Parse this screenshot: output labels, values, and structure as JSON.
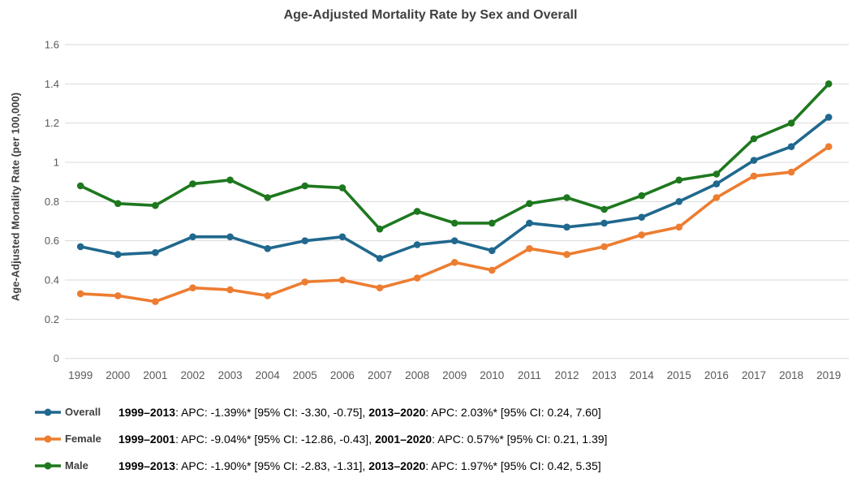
{
  "title": "Age-Adjusted Mortality Rate by Sex and Overall",
  "colors": {
    "overall": "#20688E",
    "female": "#ED7D31",
    "male": "#1E781E",
    "gridline": "#D9D9D9",
    "axis_text": "#595959",
    "title_text": "#404040"
  },
  "chart_data": {
    "type": "line",
    "x": [
      1999,
      2000,
      2001,
      2002,
      2003,
      2004,
      2005,
      2006,
      2007,
      2008,
      2009,
      2010,
      2011,
      2012,
      2013,
      2014,
      2015,
      2016,
      2017,
      2018,
      2019
    ],
    "series": [
      {
        "name": "Overall",
        "color": "#20688E",
        "values": [
          0.57,
          0.53,
          0.54,
          0.62,
          0.62,
          0.56,
          0.6,
          0.62,
          0.51,
          0.58,
          0.6,
          0.55,
          0.69,
          0.67,
          0.69,
          0.72,
          0.8,
          0.89,
          1.01,
          1.08,
          1.23
        ]
      },
      {
        "name": "Female",
        "color": "#ED7D31",
        "values": [
          0.33,
          0.32,
          0.29,
          0.36,
          0.35,
          0.32,
          0.39,
          0.4,
          0.36,
          0.41,
          0.49,
          0.45,
          0.56,
          0.53,
          0.57,
          0.63,
          0.67,
          0.82,
          0.93,
          0.95,
          1.08
        ]
      },
      {
        "name": "Male",
        "color": "#1E781E",
        "values": [
          0.88,
          0.79,
          0.78,
          0.89,
          0.91,
          0.82,
          0.88,
          0.87,
          0.66,
          0.75,
          0.69,
          0.69,
          0.79,
          0.82,
          0.76,
          0.83,
          0.91,
          0.94,
          1.12,
          1.2,
          1.4
        ]
      }
    ],
    "title": "Age-Adjusted Mortality Rate by Sex and Overall",
    "xlabel": "",
    "ylabel": "Age-Adjusted Mortality Rate (per 100,000)",
    "ylim": [
      0,
      1.6
    ],
    "yticks": [
      "0",
      "0.2",
      "0.4",
      "0.6",
      "0.8",
      "1",
      "1.2",
      "1.4",
      "1.6"
    ],
    "grid": "horizontal-only",
    "legend_position": "bottom-left",
    "marker": "circle"
  },
  "legend": [
    {
      "label": "Overall",
      "color": "#20688E",
      "annotation": [
        {
          "text": "1999–2013",
          "bold": true
        },
        {
          "text": ": APC: -1.39%* [95% CI: -3.30, -0.75], ",
          "bold": false
        },
        {
          "text": "2013–2020",
          "bold": true
        },
        {
          "text": ": APC: 2.03%* [95% CI: 0.24, 7.60]",
          "bold": false
        }
      ]
    },
    {
      "label": "Female",
      "color": "#ED7D31",
      "annotation": [
        {
          "text": "1999–2001",
          "bold": true
        },
        {
          "text": ": APC: -9.04%* [95% CI: -12.86, -0.43], ",
          "bold": false
        },
        {
          "text": "2001–2020",
          "bold": true
        },
        {
          "text": ": APC: 0.57%* [95% CI: 0.21, 1.39]",
          "bold": false
        }
      ]
    },
    {
      "label": "Male",
      "color": "#1E781E",
      "annotation": [
        {
          "text": "1999–2013",
          "bold": true
        },
        {
          "text": ": APC: -1.90%* [95% CI: -2.83, -1.31], ",
          "bold": false
        },
        {
          "text": "2013–2020",
          "bold": true
        },
        {
          "text": ": APC: 1.97%* [95% CI: 0.42, 5.35]",
          "bold": false
        }
      ]
    }
  ]
}
